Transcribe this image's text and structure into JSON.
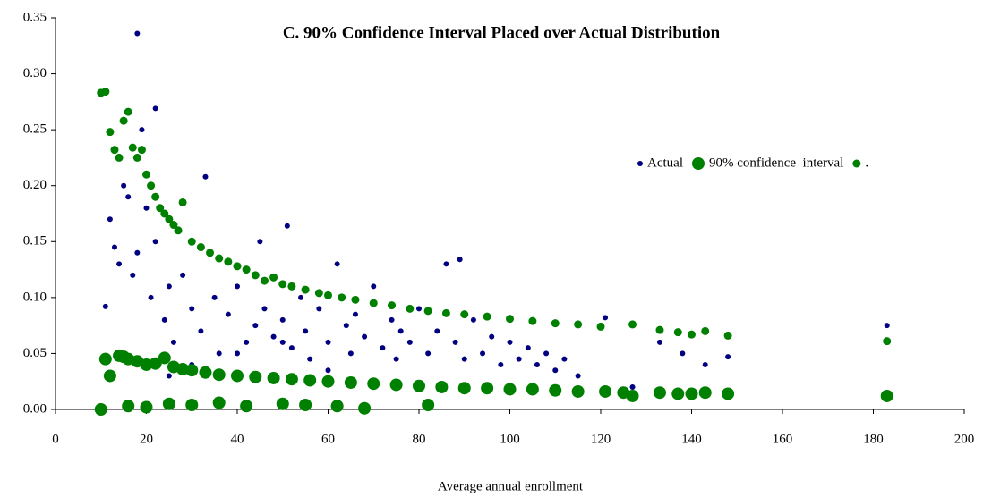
{
  "chart_data": {
    "type": "scatter",
    "title": "C. 90% Confidence Interval Placed over Actual Distribution",
    "x_label": "Average annual enrollment",
    "xlim": [
      0,
      200
    ],
    "xticks": [
      0,
      20,
      40,
      60,
      80,
      100,
      120,
      140,
      160,
      180,
      200
    ],
    "ylim": [
      0,
      0.35
    ],
    "yticks": [
      {
        "value": 0,
        "label": "0.00"
      },
      {
        "value": 0.05,
        "label": "0.05"
      },
      {
        "value": 0.1,
        "label": "0.10"
      },
      {
        "value": 0.15,
        "label": "0.15"
      },
      {
        "value": 0.2,
        "label": "0.20"
      },
      {
        "value": 0.25,
        "label": "0.25"
      },
      {
        "value": 0.3,
        "label": "0.30"
      },
      {
        "value": 0.35,
        "label": "0.35"
      }
    ],
    "grid": false,
    "legend": "upper right",
    "series": [
      {
        "name": "Actual",
        "color": "#000080",
        "marker_size": "small",
        "x": [
          18,
          19,
          22,
          11,
          12,
          13,
          14,
          15,
          16,
          17,
          18,
          20,
          21,
          22,
          24,
          25,
          26,
          28,
          30,
          32,
          33,
          35,
          36,
          38,
          40,
          42,
          44,
          45,
          46,
          48,
          50,
          51,
          52,
          54,
          55,
          56,
          58,
          60,
          62,
          64,
          65,
          66,
          68,
          70,
          72,
          74,
          75,
          76,
          78,
          80,
          82,
          84,
          86,
          88,
          89,
          90,
          92,
          94,
          96,
          98,
          100,
          102,
          104,
          106,
          108,
          110,
          112,
          115,
          121,
          127,
          133,
          138,
          143,
          148,
          183,
          25,
          30,
          40,
          50,
          60
        ],
        "y": [
          0.336,
          0.25,
          0.269,
          0.092,
          0.17,
          0.145,
          0.13,
          0.2,
          0.19,
          0.12,
          0.14,
          0.18,
          0.1,
          0.15,
          0.08,
          0.11,
          0.06,
          0.12,
          0.09,
          0.07,
          0.208,
          0.1,
          0.05,
          0.085,
          0.11,
          0.06,
          0.075,
          0.15,
          0.09,
          0.065,
          0.08,
          0.164,
          0.055,
          0.1,
          0.07,
          0.045,
          0.09,
          0.06,
          0.13,
          0.075,
          0.05,
          0.085,
          0.065,
          0.11,
          0.055,
          0.08,
          0.045,
          0.07,
          0.06,
          0.09,
          0.05,
          0.07,
          0.13,
          0.06,
          0.134,
          0.045,
          0.08,
          0.05,
          0.065,
          0.04,
          0.06,
          0.045,
          0.055,
          0.04,
          0.05,
          0.035,
          0.045,
          0.03,
          0.082,
          0.02,
          0.06,
          0.05,
          0.04,
          0.047,
          0.075,
          0.03,
          0.04,
          0.05,
          0.06,
          0.035
        ]
      },
      {
        "name": "90% confidence  interval",
        "color": "#008000",
        "marker_size": "large",
        "x": [
          10,
          11,
          12,
          14,
          15,
          16,
          18,
          20,
          22,
          24,
          26,
          28,
          30,
          33,
          36,
          40,
          44,
          48,
          52,
          56,
          60,
          65,
          70,
          75,
          80,
          85,
          90,
          95,
          100,
          105,
          110,
          115,
          121,
          125,
          127,
          133,
          137,
          140,
          143,
          148,
          183,
          16,
          20,
          25,
          30,
          36,
          42,
          50,
          55,
          62,
          68,
          82
        ],
        "y": [
          0.0,
          0.045,
          0.03,
          0.048,
          0.047,
          0.045,
          0.043,
          0.04,
          0.041,
          0.046,
          0.038,
          0.036,
          0.035,
          0.033,
          0.031,
          0.03,
          0.029,
          0.028,
          0.027,
          0.026,
          0.025,
          0.024,
          0.023,
          0.022,
          0.021,
          0.02,
          0.019,
          0.019,
          0.018,
          0.018,
          0.017,
          0.016,
          0.016,
          0.015,
          0.012,
          0.015,
          0.014,
          0.014,
          0.015,
          0.014,
          0.012,
          0.003,
          0.002,
          0.005,
          0.004,
          0.006,
          0.003,
          0.005,
          0.004,
          0.003,
          0.001,
          0.004
        ]
      },
      {
        "name": ".",
        "color": "#008000",
        "marker_size": "medium",
        "x": [
          10,
          11,
          12,
          13,
          14,
          15,
          16,
          17,
          18,
          19,
          20,
          21,
          22,
          23,
          24,
          25,
          26,
          27,
          28,
          30,
          32,
          34,
          36,
          38,
          40,
          42,
          44,
          46,
          48,
          50,
          52,
          55,
          58,
          60,
          63,
          66,
          70,
          74,
          78,
          82,
          86,
          90,
          95,
          100,
          105,
          110,
          115,
          120,
          127,
          133,
          137,
          140,
          143,
          148,
          183
        ],
        "y": [
          0.283,
          0.284,
          0.248,
          0.232,
          0.225,
          0.258,
          0.266,
          0.234,
          0.225,
          0.232,
          0.21,
          0.2,
          0.19,
          0.18,
          0.175,
          0.17,
          0.165,
          0.16,
          0.185,
          0.15,
          0.145,
          0.14,
          0.135,
          0.132,
          0.128,
          0.125,
          0.12,
          0.115,
          0.118,
          0.112,
          0.11,
          0.107,
          0.104,
          0.102,
          0.1,
          0.098,
          0.095,
          0.093,
          0.09,
          0.088,
          0.086,
          0.085,
          0.083,
          0.081,
          0.079,
          0.077,
          0.076,
          0.074,
          0.076,
          0.071,
          0.069,
          0.067,
          0.07,
          0.066,
          0.061
        ]
      }
    ]
  }
}
